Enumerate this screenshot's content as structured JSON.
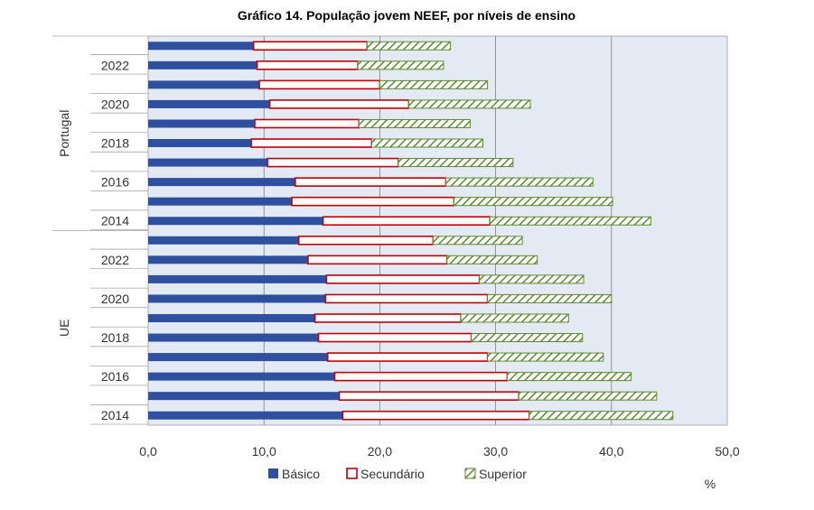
{
  "chart_data": {
    "type": "bar",
    "orientation": "horizontal",
    "stacked": true,
    "title": "Gráfico 14. População jovem NEEF, por níveis de ensino",
    "unit_label": "%",
    "xlim": [
      0,
      50
    ],
    "x_ticks": [
      "0,0",
      "10,0",
      "20,0",
      "30,0",
      "40,0",
      "50,0"
    ],
    "x_tick_values": [
      0,
      10,
      20,
      30,
      40,
      50
    ],
    "grid": true,
    "legend_position": "bottom",
    "groups": [
      {
        "name": "Portugal",
        "rows": [
          {
            "year": "",
            "values": [
              9.1,
              9.8,
              7.2
            ]
          },
          {
            "year": "2022",
            "values": [
              9.4,
              8.7,
              7.4
            ]
          },
          {
            "year": "",
            "values": [
              9.6,
              10.4,
              9.3
            ]
          },
          {
            "year": "2020",
            "values": [
              10.5,
              12.0,
              10.5
            ]
          },
          {
            "year": "",
            "values": [
              9.2,
              9.0,
              9.6
            ]
          },
          {
            "year": "2018",
            "values": [
              8.9,
              10.4,
              9.6
            ]
          },
          {
            "year": "",
            "values": [
              10.3,
              11.3,
              9.9
            ]
          },
          {
            "year": "2016",
            "values": [
              12.7,
              13.0,
              12.7
            ]
          },
          {
            "year": "",
            "values": [
              12.4,
              14.0,
              13.7
            ]
          },
          {
            "year": "2014",
            "values": [
              15.1,
              14.4,
              13.9
            ]
          }
        ]
      },
      {
        "name": "UE",
        "rows": [
          {
            "year": "",
            "values": [
              13.0,
              11.6,
              7.7
            ]
          },
          {
            "year": "2022",
            "values": [
              13.8,
              12.0,
              7.8
            ]
          },
          {
            "year": "",
            "values": [
              15.4,
              13.2,
              9.0
            ]
          },
          {
            "year": "2020",
            "values": [
              15.3,
              14.0,
              10.7
            ]
          },
          {
            "year": "",
            "values": [
              14.4,
              12.6,
              9.3
            ]
          },
          {
            "year": "2018",
            "values": [
              14.7,
              13.2,
              9.6
            ]
          },
          {
            "year": "",
            "values": [
              15.5,
              13.8,
              10.0
            ]
          },
          {
            "year": "2016",
            "values": [
              16.1,
              14.9,
              10.7
            ]
          },
          {
            "year": "",
            "values": [
              16.5,
              15.5,
              11.9
            ]
          },
          {
            "year": "2014",
            "values": [
              16.8,
              16.1,
              12.4
            ]
          }
        ]
      }
    ],
    "series": [
      {
        "name": "Básico",
        "color": "#2f4f9f",
        "style": "solid"
      },
      {
        "name": "Secundário",
        "color": "#c00000",
        "style": "outline"
      },
      {
        "name": "Superior",
        "color": "#5a8a2e",
        "style": "hatched"
      }
    ],
    "plot_background": "#e3eaf4"
  }
}
